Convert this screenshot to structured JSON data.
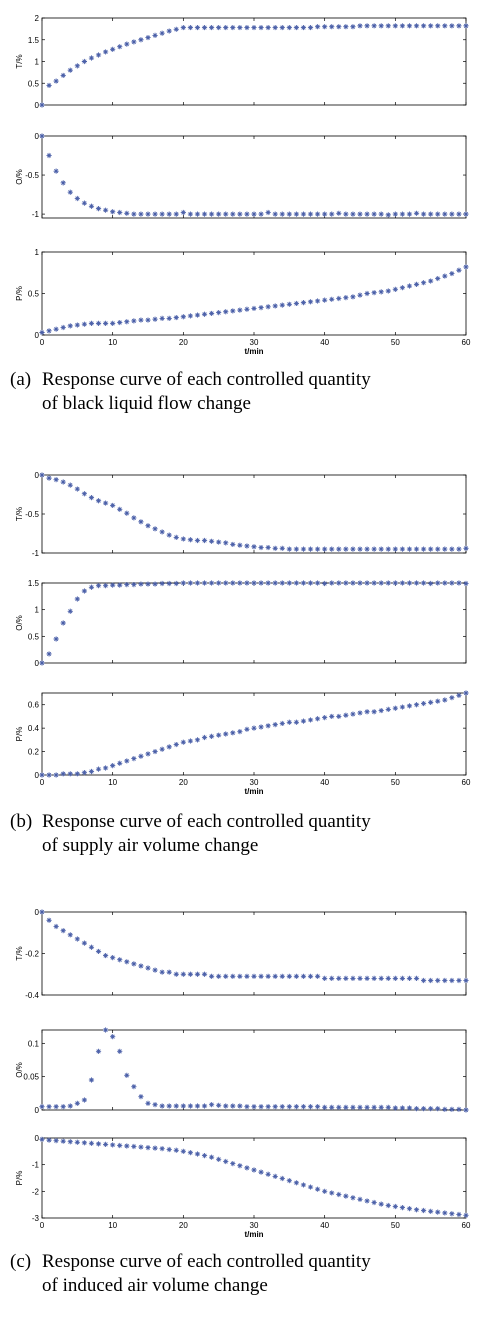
{
  "chart_data": [
    {
      "type": "scatter",
      "y_label": "T/%",
      "color": "#4a5fa8",
      "xlim": [
        0,
        60
      ],
      "xticks": [
        0,
        10,
        20,
        30,
        40,
        50,
        60
      ],
      "ylim": [
        0,
        2
      ],
      "yticks": [
        0,
        0.5,
        1,
        1.5,
        2
      ],
      "x": [
        0,
        1,
        2,
        3,
        4,
        5,
        6,
        7,
        8,
        9,
        10,
        11,
        12,
        13,
        14,
        15,
        16,
        17,
        18,
        19,
        20,
        21,
        22,
        23,
        24,
        25,
        26,
        27,
        28,
        29,
        30,
        31,
        32,
        33,
        34,
        35,
        36,
        37,
        38,
        39,
        40,
        41,
        42,
        43,
        44,
        45,
        46,
        47,
        48,
        49,
        50,
        51,
        52,
        53,
        54,
        55,
        56,
        57,
        58,
        59,
        60
      ],
      "values": [
        0,
        0.45,
        0.55,
        0.68,
        0.8,
        0.9,
        1.0,
        1.08,
        1.15,
        1.22,
        1.28,
        1.34,
        1.4,
        1.45,
        1.5,
        1.55,
        1.6,
        1.65,
        1.7,
        1.74,
        1.78,
        1.78,
        1.78,
        1.78,
        1.78,
        1.78,
        1.78,
        1.78,
        1.78,
        1.78,
        1.78,
        1.78,
        1.78,
        1.78,
        1.78,
        1.78,
        1.78,
        1.78,
        1.78,
        1.8,
        1.8,
        1.8,
        1.8,
        1.8,
        1.8,
        1.82,
        1.82,
        1.82,
        1.82,
        1.82,
        1.82,
        1.82,
        1.82,
        1.82,
        1.82,
        1.82,
        1.82,
        1.82,
        1.82,
        1.82,
        1.82
      ]
    },
    {
      "type": "scatter",
      "y_label": "O/%",
      "color": "#4a5fa8",
      "xlim": [
        0,
        60
      ],
      "xticks": [
        0,
        10,
        20,
        30,
        40,
        50,
        60
      ],
      "ylim": [
        -1.05,
        0
      ],
      "yticks": [
        0,
        -0.5,
        -1
      ],
      "x": [
        0,
        1,
        2,
        3,
        4,
        5,
        6,
        7,
        8,
        9,
        10,
        11,
        12,
        13,
        14,
        15,
        16,
        17,
        18,
        19,
        20,
        21,
        22,
        23,
        24,
        25,
        26,
        27,
        28,
        29,
        30,
        31,
        32,
        33,
        34,
        35,
        36,
        37,
        38,
        39,
        40,
        41,
        42,
        43,
        44,
        45,
        46,
        47,
        48,
        49,
        50,
        51,
        52,
        53,
        54,
        55,
        56,
        57,
        58,
        59,
        60
      ],
      "values": [
        0,
        -0.25,
        -0.45,
        -0.6,
        -0.72,
        -0.8,
        -0.86,
        -0.9,
        -0.93,
        -0.95,
        -0.97,
        -0.98,
        -0.99,
        -1,
        -1,
        -1,
        -1,
        -1,
        -1,
        -1,
        -0.98,
        -1,
        -1,
        -1,
        -1,
        -1,
        -1,
        -1,
        -1,
        -1,
        -1,
        -1,
        -0.98,
        -1,
        -1,
        -1,
        -1,
        -1,
        -1,
        -1,
        -1,
        -1,
        -0.99,
        -1,
        -1,
        -1,
        -1,
        -1,
        -1,
        -1.01,
        -1,
        -1,
        -1,
        -0.99,
        -1,
        -1,
        -1,
        -1,
        -1,
        -1,
        -1
      ]
    },
    {
      "type": "scatter",
      "y_label": "P/%",
      "x_label": "t/min",
      "color": "#4a5fa8",
      "xlim": [
        0,
        60
      ],
      "xticks": [
        0,
        10,
        20,
        30,
        40,
        50,
        60
      ],
      "ylim": [
        0,
        1
      ],
      "yticks": [
        0,
        0.5,
        1
      ],
      "x": [
        0,
        1,
        2,
        3,
        4,
        5,
        6,
        7,
        8,
        9,
        10,
        11,
        12,
        13,
        14,
        15,
        16,
        17,
        18,
        19,
        20,
        21,
        22,
        23,
        24,
        25,
        26,
        27,
        28,
        29,
        30,
        31,
        32,
        33,
        34,
        35,
        36,
        37,
        38,
        39,
        40,
        41,
        42,
        43,
        44,
        45,
        46,
        47,
        48,
        49,
        50,
        51,
        52,
        53,
        54,
        55,
        56,
        57,
        58,
        59,
        60
      ],
      "values": [
        0.03,
        0.05,
        0.07,
        0.09,
        0.11,
        0.12,
        0.13,
        0.14,
        0.14,
        0.14,
        0.14,
        0.15,
        0.16,
        0.17,
        0.18,
        0.18,
        0.19,
        0.2,
        0.2,
        0.21,
        0.22,
        0.23,
        0.24,
        0.25,
        0.26,
        0.27,
        0.28,
        0.29,
        0.3,
        0.31,
        0.32,
        0.33,
        0.34,
        0.35,
        0.36,
        0.37,
        0.38,
        0.39,
        0.4,
        0.41,
        0.42,
        0.43,
        0.44,
        0.45,
        0.46,
        0.48,
        0.5,
        0.51,
        0.52,
        0.53,
        0.55,
        0.57,
        0.59,
        0.61,
        0.63,
        0.65,
        0.68,
        0.71,
        0.74,
        0.78,
        0.82
      ]
    },
    {
      "type": "scatter",
      "y_label": "T/%",
      "color": "#4a5fa8",
      "xlim": [
        0,
        60
      ],
      "xticks": [
        0,
        10,
        20,
        30,
        40,
        50,
        60
      ],
      "ylim": [
        -1,
        0
      ],
      "yticks": [
        0,
        -0.5,
        -1
      ],
      "x": [
        0,
        1,
        2,
        3,
        4,
        5,
        6,
        7,
        8,
        9,
        10,
        11,
        12,
        13,
        14,
        15,
        16,
        17,
        18,
        19,
        20,
        21,
        22,
        23,
        24,
        25,
        26,
        27,
        28,
        29,
        30,
        31,
        32,
        33,
        34,
        35,
        36,
        37,
        38,
        39,
        40,
        41,
        42,
        43,
        44,
        45,
        46,
        47,
        48,
        49,
        50,
        51,
        52,
        53,
        54,
        55,
        56,
        57,
        58,
        59,
        60
      ],
      "values": [
        0,
        -0.04,
        -0.06,
        -0.09,
        -0.13,
        -0.18,
        -0.24,
        -0.29,
        -0.33,
        -0.36,
        -0.39,
        -0.44,
        -0.49,
        -0.55,
        -0.6,
        -0.65,
        -0.69,
        -0.73,
        -0.77,
        -0.8,
        -0.82,
        -0.83,
        -0.84,
        -0.84,
        -0.85,
        -0.86,
        -0.87,
        -0.89,
        -0.9,
        -0.91,
        -0.92,
        -0.93,
        -0.93,
        -0.94,
        -0.94,
        -0.95,
        -0.95,
        -0.95,
        -0.95,
        -0.95,
        -0.95,
        -0.95,
        -0.95,
        -0.95,
        -0.95,
        -0.95,
        -0.95,
        -0.95,
        -0.95,
        -0.95,
        -0.95,
        -0.95,
        -0.95,
        -0.95,
        -0.95,
        -0.95,
        -0.95,
        -0.95,
        -0.95,
        -0.95,
        -0.94
      ]
    },
    {
      "type": "scatter",
      "y_label": "O/%",
      "color": "#4a5fa8",
      "xlim": [
        0,
        60
      ],
      "xticks": [
        0,
        10,
        20,
        30,
        40,
        50,
        60
      ],
      "ylim": [
        0,
        1.5
      ],
      "yticks": [
        0,
        0.5,
        1,
        1.5
      ],
      "x": [
        0,
        1,
        2,
        3,
        4,
        5,
        6,
        7,
        8,
        9,
        10,
        11,
        12,
        13,
        14,
        15,
        16,
        17,
        18,
        19,
        20,
        21,
        22,
        23,
        24,
        25,
        26,
        27,
        28,
        29,
        30,
        31,
        32,
        33,
        34,
        35,
        36,
        37,
        38,
        39,
        40,
        41,
        42,
        43,
        44,
        45,
        46,
        47,
        48,
        49,
        50,
        51,
        52,
        53,
        54,
        55,
        56,
        57,
        58,
        59,
        60
      ],
      "values": [
        0,
        0.17,
        0.45,
        0.75,
        0.97,
        1.2,
        1.35,
        1.42,
        1.45,
        1.45,
        1.46,
        1.46,
        1.47,
        1.47,
        1.48,
        1.48,
        1.48,
        1.49,
        1.49,
        1.49,
        1.5,
        1.5,
        1.5,
        1.5,
        1.5,
        1.5,
        1.5,
        1.5,
        1.5,
        1.5,
        1.5,
        1.5,
        1.5,
        1.5,
        1.5,
        1.5,
        1.5,
        1.5,
        1.5,
        1.5,
        1.49,
        1.5,
        1.5,
        1.5,
        1.5,
        1.5,
        1.5,
        1.5,
        1.5,
        1.5,
        1.5,
        1.5,
        1.5,
        1.5,
        1.5,
        1.49,
        1.5,
        1.5,
        1.5,
        1.5,
        1.49
      ]
    },
    {
      "type": "scatter",
      "y_label": "P/%",
      "x_label": "t/min",
      "color": "#4a5fa8",
      "xlim": [
        0,
        60
      ],
      "xticks": [
        0,
        10,
        20,
        30,
        40,
        50,
        60
      ],
      "ylim": [
        0,
        0.7
      ],
      "yticks": [
        0,
        0.2,
        0.4,
        0.6
      ],
      "x": [
        0,
        1,
        2,
        3,
        4,
        5,
        6,
        7,
        8,
        9,
        10,
        11,
        12,
        13,
        14,
        15,
        16,
        17,
        18,
        19,
        20,
        21,
        22,
        23,
        24,
        25,
        26,
        27,
        28,
        29,
        30,
        31,
        32,
        33,
        34,
        35,
        36,
        37,
        38,
        39,
        40,
        41,
        42,
        43,
        44,
        45,
        46,
        47,
        48,
        49,
        50,
        51,
        52,
        53,
        54,
        55,
        56,
        57,
        58,
        59,
        60
      ],
      "values": [
        0,
        0,
        0,
        0.01,
        0.01,
        0.01,
        0.02,
        0.03,
        0.05,
        0.06,
        0.08,
        0.1,
        0.12,
        0.14,
        0.16,
        0.18,
        0.2,
        0.22,
        0.24,
        0.26,
        0.28,
        0.29,
        0.3,
        0.32,
        0.33,
        0.34,
        0.35,
        0.36,
        0.37,
        0.39,
        0.4,
        0.41,
        0.42,
        0.43,
        0.44,
        0.45,
        0.45,
        0.46,
        0.47,
        0.48,
        0.49,
        0.5,
        0.5,
        0.51,
        0.52,
        0.53,
        0.54,
        0.54,
        0.55,
        0.56,
        0.57,
        0.58,
        0.59,
        0.6,
        0.61,
        0.62,
        0.63,
        0.64,
        0.66,
        0.68,
        0.7
      ]
    },
    {
      "type": "scatter",
      "y_label": "T/%",
      "color": "#4a5fa8",
      "xlim": [
        0,
        60
      ],
      "xticks": [
        0,
        10,
        20,
        30,
        40,
        50,
        60
      ],
      "ylim": [
        -0.4,
        0
      ],
      "yticks": [
        0,
        -0.2,
        -0.4
      ],
      "x": [
        0,
        1,
        2,
        3,
        4,
        5,
        6,
        7,
        8,
        9,
        10,
        11,
        12,
        13,
        14,
        15,
        16,
        17,
        18,
        19,
        20,
        21,
        22,
        23,
        24,
        25,
        26,
        27,
        28,
        29,
        30,
        31,
        32,
        33,
        34,
        35,
        36,
        37,
        38,
        39,
        40,
        41,
        42,
        43,
        44,
        45,
        46,
        47,
        48,
        49,
        50,
        51,
        52,
        53,
        54,
        55,
        56,
        57,
        58,
        59,
        60
      ],
      "values": [
        0,
        -0.04,
        -0.07,
        -0.09,
        -0.11,
        -0.13,
        -0.15,
        -0.17,
        -0.19,
        -0.21,
        -0.22,
        -0.23,
        -0.24,
        -0.25,
        -0.26,
        -0.27,
        -0.28,
        -0.29,
        -0.29,
        -0.3,
        -0.3,
        -0.3,
        -0.3,
        -0.3,
        -0.31,
        -0.31,
        -0.31,
        -0.31,
        -0.31,
        -0.31,
        -0.31,
        -0.31,
        -0.31,
        -0.31,
        -0.31,
        -0.31,
        -0.31,
        -0.31,
        -0.31,
        -0.31,
        -0.32,
        -0.32,
        -0.32,
        -0.32,
        -0.32,
        -0.32,
        -0.32,
        -0.32,
        -0.32,
        -0.32,
        -0.32,
        -0.32,
        -0.32,
        -0.32,
        -0.33,
        -0.33,
        -0.33,
        -0.33,
        -0.33,
        -0.33,
        -0.33
      ]
    },
    {
      "type": "scatter",
      "y_label": "O/%",
      "color": "#4a5fa8",
      "xlim": [
        0,
        60
      ],
      "xticks": [
        0,
        10,
        20,
        30,
        40,
        50,
        60
      ],
      "ylim": [
        0,
        0.12
      ],
      "yticks": [
        0,
        0.05,
        0.1
      ],
      "x": [
        0,
        1,
        2,
        3,
        4,
        5,
        6,
        7,
        8,
        9,
        10,
        11,
        12,
        13,
        14,
        15,
        16,
        17,
        18,
        19,
        20,
        21,
        22,
        23,
        24,
        25,
        26,
        27,
        28,
        29,
        30,
        31,
        32,
        33,
        34,
        35,
        36,
        37,
        38,
        39,
        40,
        41,
        42,
        43,
        44,
        45,
        46,
        47,
        48,
        49,
        50,
        51,
        52,
        53,
        54,
        55,
        56,
        57,
        58,
        59,
        60
      ],
      "values": [
        0.005,
        0.005,
        0.005,
        0.005,
        0.006,
        0.01,
        0.015,
        0.045,
        0.088,
        0.12,
        0.11,
        0.088,
        0.052,
        0.035,
        0.02,
        0.01,
        0.008,
        0.006,
        0.006,
        0.006,
        0.006,
        0.006,
        0.006,
        0.006,
        0.008,
        0.007,
        0.006,
        0.006,
        0.006,
        0.005,
        0.005,
        0.005,
        0.005,
        0.005,
        0.005,
        0.005,
        0.005,
        0.005,
        0.005,
        0.005,
        0.004,
        0.004,
        0.004,
        0.004,
        0.004,
        0.004,
        0.004,
        0.004,
        0.004,
        0.004,
        0.003,
        0.003,
        0.003,
        0.002,
        0.002,
        0.002,
        0.002,
        0.001,
        0.001,
        0.001,
        0
      ]
    },
    {
      "type": "scatter",
      "y_label": "P/%",
      "x_label": "t/min",
      "color": "#4a5fa8",
      "xlim": [
        0,
        60
      ],
      "xticks": [
        0,
        10,
        20,
        30,
        40,
        50,
        60
      ],
      "ylim": [
        -3,
        0
      ],
      "yticks": [
        0,
        -1,
        -2,
        -3
      ],
      "x": [
        0,
        1,
        2,
        3,
        4,
        5,
        6,
        7,
        8,
        9,
        10,
        11,
        12,
        13,
        14,
        15,
        16,
        17,
        18,
        19,
        20,
        21,
        22,
        23,
        24,
        25,
        26,
        27,
        28,
        29,
        30,
        31,
        32,
        33,
        34,
        35,
        36,
        37,
        38,
        39,
        40,
        41,
        42,
        43,
        44,
        45,
        46,
        47,
        48,
        49,
        50,
        51,
        52,
        53,
        54,
        55,
        56,
        57,
        58,
        59,
        60
      ],
      "values": [
        -0.05,
        -0.08,
        -0.1,
        -0.12,
        -0.14,
        -0.16,
        -0.18,
        -0.2,
        -0.22,
        -0.24,
        -0.26,
        -0.28,
        -0.3,
        -0.32,
        -0.34,
        -0.36,
        -0.38,
        -0.4,
        -0.43,
        -0.46,
        -0.5,
        -0.55,
        -0.6,
        -0.66,
        -0.72,
        -0.8,
        -0.88,
        -0.96,
        -1.04,
        -1.12,
        -1.2,
        -1.28,
        -1.36,
        -1.44,
        -1.52,
        -1.6,
        -1.68,
        -1.76,
        -1.84,
        -1.92,
        -2.0,
        -2.06,
        -2.12,
        -2.18,
        -2.24,
        -2.3,
        -2.36,
        -2.42,
        -2.48,
        -2.53,
        -2.57,
        -2.61,
        -2.65,
        -2.69,
        -2.72,
        -2.75,
        -2.78,
        -2.81,
        -2.84,
        -2.87,
        -2.9
      ]
    }
  ],
  "captions": [
    {
      "label": "(a)",
      "lines": [
        "Response curve of each controlled quantity",
        "of black liquid flow change"
      ]
    },
    {
      "label": "(b)",
      "lines": [
        "Response curve of each controlled quantity",
        "of supply air volume change"
      ]
    },
    {
      "label": "(c)",
      "lines": [
        "Response curve of each controlled quantity",
        "of induced air volume change"
      ]
    }
  ]
}
